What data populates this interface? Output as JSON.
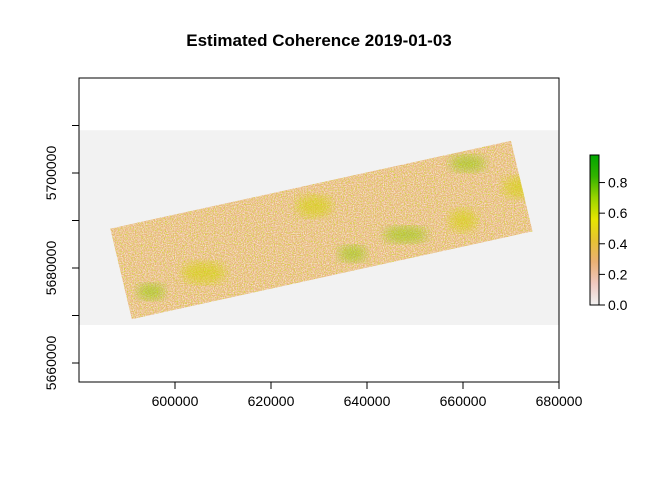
{
  "chart_data": {
    "type": "heatmap",
    "title": "Estimated Coherence 2019-01-03",
    "xlabel": "",
    "ylabel": "",
    "xlim": [
      580000,
      680000
    ],
    "ylim": [
      5656000,
      5720000
    ],
    "x_ticks": [
      600000,
      620000,
      640000,
      660000,
      680000
    ],
    "x_tick_labels": [
      "600000",
      "620000",
      "640000",
      "660000",
      "680000"
    ],
    "y_ticks": [
      5660000,
      5670000,
      5680000,
      5690000,
      5700000,
      5710000
    ],
    "y_tick_labels": [
      "5660000",
      "",
      "5680000",
      "",
      "5700000",
      ""
    ],
    "raster_extent": {
      "xmin": 580000,
      "xmax": 680000,
      "ymin": 5668000,
      "ymax": 5709000
    },
    "raster_background": "#f2f2f2",
    "swath_corners": [
      [
        586500,
        5688300
      ],
      [
        670000,
        5706800
      ],
      [
        674500,
        5687700
      ],
      [
        591000,
        5669200
      ]
    ],
    "hotspots": [
      [
        595000,
        5675000
      ],
      [
        629000,
        5693000
      ],
      [
        648000,
        5687000
      ],
      [
        660000,
        5690000
      ],
      [
        661000,
        5702000
      ],
      [
        606000,
        5679000
      ],
      [
        637000,
        5683000
      ],
      [
        672000,
        5697000
      ]
    ],
    "colorbar": {
      "min": 0.0,
      "max": 0.98,
      "ticks": [
        0.0,
        0.2,
        0.4,
        0.6,
        0.8
      ],
      "tick_labels": [
        "0.0",
        "0.2",
        "0.4",
        "0.6",
        "0.8"
      ],
      "colors": [
        "#f2f2f2",
        "#f0c9c0",
        "#ebb175",
        "#e6c233",
        "#e6e600",
        "#99d400",
        "#33b300",
        "#00a600"
      ]
    },
    "grid": false,
    "legend_position": "right"
  }
}
